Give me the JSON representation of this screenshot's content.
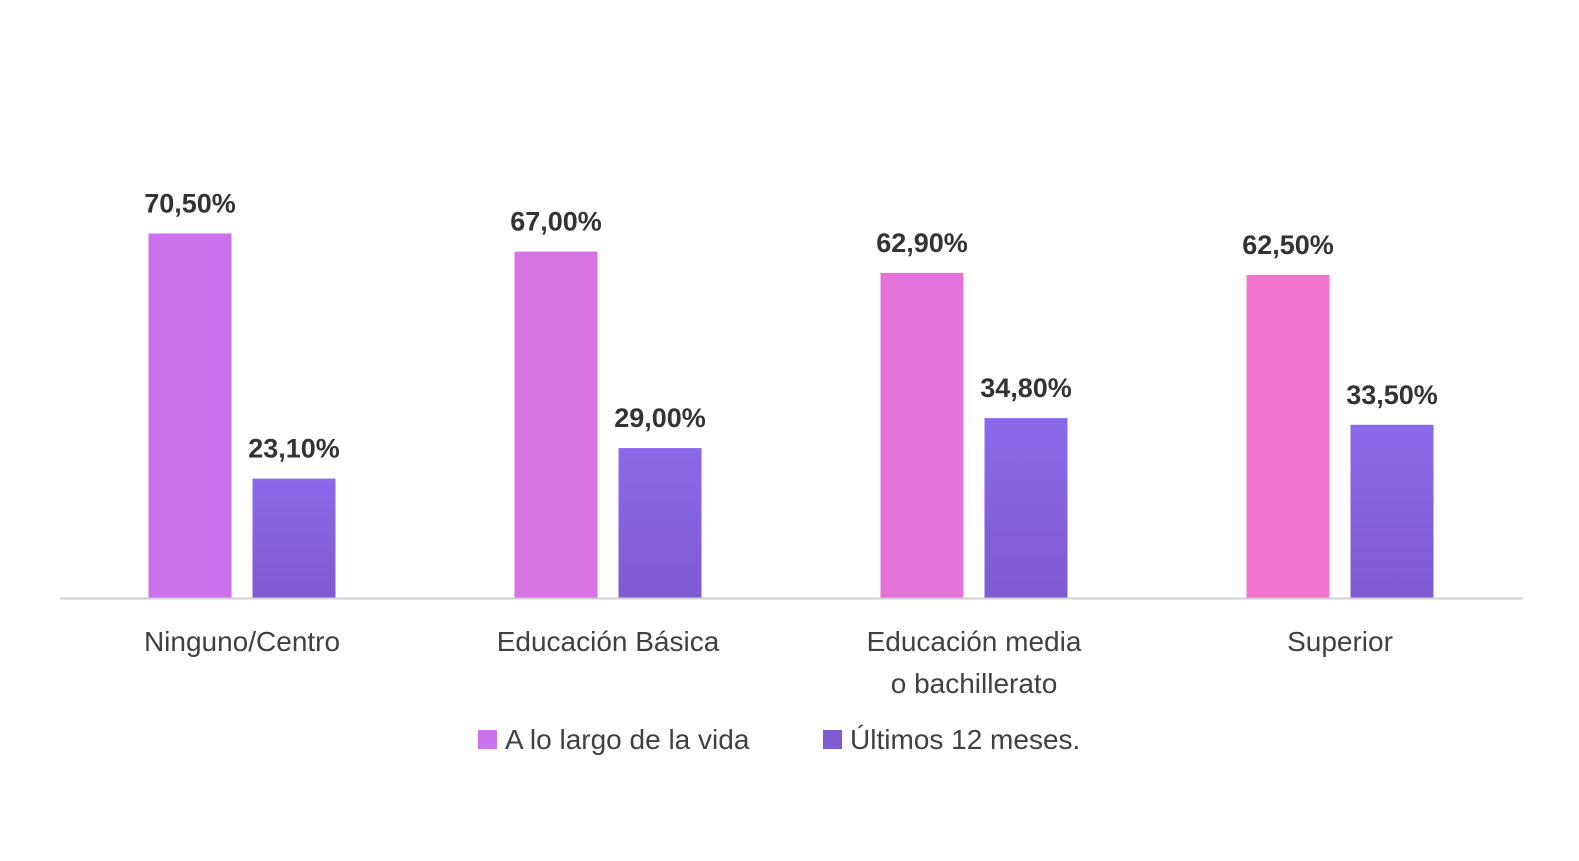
{
  "chart_data": {
    "type": "bar",
    "categories": [
      [
        "Ninguno/Centro"
      ],
      [
        "Educación Básica"
      ],
      [
        "Educación media",
        "o bachillerato"
      ],
      [
        "Superior"
      ]
    ],
    "series": [
      {
        "name": "A lo largo de la vida",
        "values": [
          70.5,
          67.0,
          62.9,
          62.5
        ],
        "labels": [
          "70,50%",
          "67,00%",
          "62,90%",
          "62,50%"
        ],
        "color_start": "#c972ec",
        "color_end": "#f274cf"
      },
      {
        "name": "Últimos 12 meses.",
        "values": [
          23.1,
          29.0,
          34.8,
          33.5
        ],
        "labels": [
          "23,10%",
          "29,00%",
          "34,80%",
          "33,50%"
        ],
        "color_top": "#8a6aea",
        "color_bottom": "#7f5bd1"
      }
    ],
    "ylim": [
      0,
      100
    ],
    "grid": false,
    "legend": "bottom",
    "axis_color": "#d0d0d0"
  }
}
